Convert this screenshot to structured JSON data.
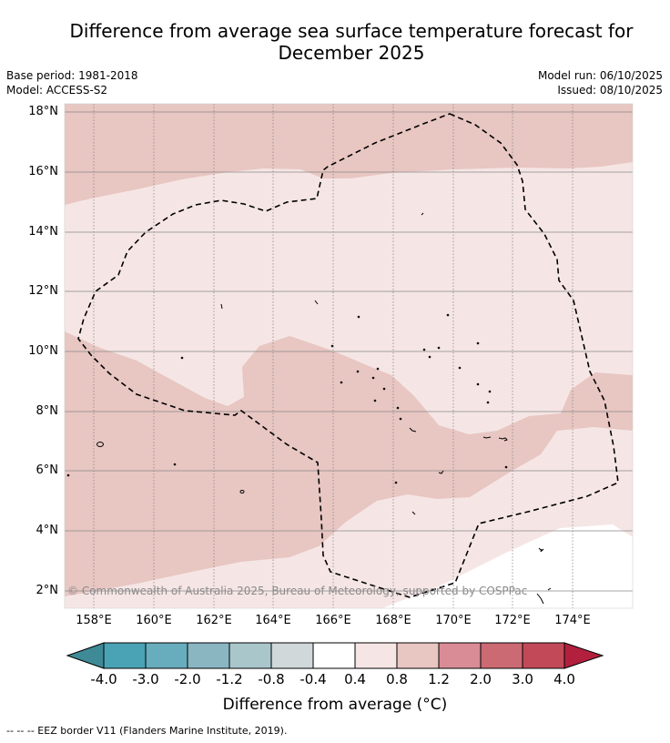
{
  "title": {
    "line1": "Difference from average sea surface temperature forecast for",
    "line2": "December 2025"
  },
  "info": {
    "base_period": "Base period: 1981-2018",
    "model": "Model: ACCESS-S2",
    "model_run": "Model run: 06/10/2025",
    "issued": "Issued: 08/10/2025"
  },
  "axes": {
    "latitude_labels": [
      "18°N",
      "16°N",
      "14°N",
      "12°N",
      "10°N",
      "8°N",
      "6°N",
      "4°N",
      "2°N"
    ],
    "longitude_labels": [
      "158°E",
      "160°E",
      "162°E",
      "164°E",
      "166°E",
      "168°E",
      "170°E",
      "172°E",
      "174°E"
    ]
  },
  "map": {
    "copyright": "© Commonwealth of Australia 2025, Bureau of Meteorology, supported by COSPPac",
    "eez_region": "EEZ boundary (dashed)"
  },
  "colorbar": {
    "ticks": [
      "-4.0",
      "-3.0",
      "-2.0",
      "-1.2",
      "-0.8",
      "-0.4",
      "0.4",
      "0.8",
      "1.2",
      "2.0",
      "3.0",
      "4.0"
    ],
    "colors": [
      "#3e8a96",
      "#4aa3b4",
      "#68adbd",
      "#8ab6c2",
      "#a9c6cb",
      "#d1d8da",
      "#ffffff",
      "#f5e6e5",
      "#e8c6c2",
      "#d98c96",
      "#cc6a74",
      "#c24a58",
      "#b2203e"
    ],
    "label": "Difference from average (°C)"
  },
  "legend": {
    "text": "-- -- -- EEZ border V11 (Flanders Marine Institute, 2019)."
  },
  "colors": {
    "anomaly_0_4_to_0_8": "#f5e6e5",
    "anomaly_0_8_to_1_2": "#e8c6c2",
    "eez_line": "#000000",
    "grid": "#888888"
  }
}
